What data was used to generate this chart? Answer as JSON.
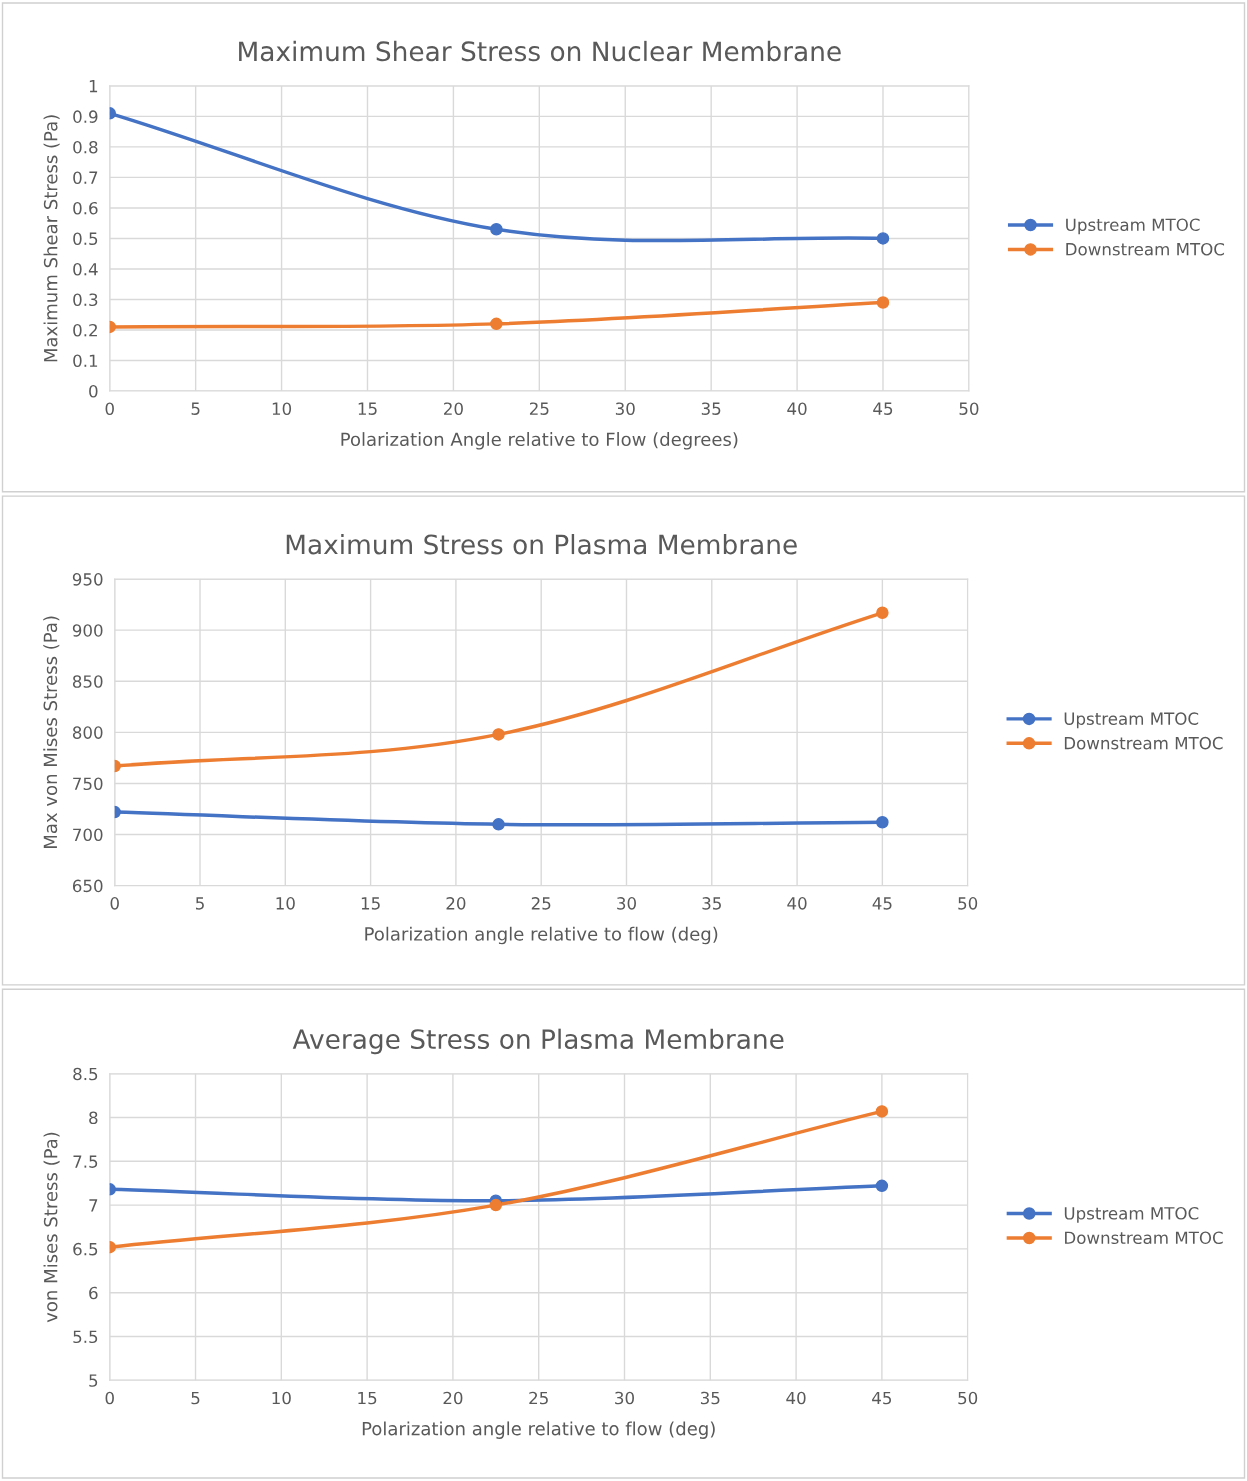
{
  "chart_data": [
    {
      "type": "line",
      "title": "Maximum Shear Stress on Nuclear Membrane",
      "xlabel": "Polarization Angle relative to Flow (degrees)",
      "ylabel": "Maximum Shear Stress (Pa)",
      "x": [
        0,
        22.5,
        45
      ],
      "series": [
        {
          "name": "Upstream MTOC",
          "color": "#4472c4",
          "values": [
            0.91,
            0.53,
            0.5
          ]
        },
        {
          "name": "Downstream MTOC",
          "color": "#ed7d31",
          "values": [
            0.21,
            0.22,
            0.29
          ]
        }
      ],
      "xlim": [
        0,
        50
      ],
      "xticks": [
        0,
        5,
        10,
        15,
        20,
        25,
        30,
        35,
        40,
        45,
        50
      ],
      "ylim": [
        0,
        1
      ],
      "yticks": [
        0,
        0.1,
        0.2,
        0.3,
        0.4,
        0.5,
        0.6,
        0.7,
        0.8,
        0.9,
        1
      ],
      "grid": true,
      "legend": "right",
      "marker": "circle",
      "line_style": "solid"
    },
    {
      "type": "line",
      "title": "Maximum Stress on Plasma Membrane",
      "xlabel": "Polarization angle relative to flow (deg)",
      "ylabel": "Max von Mises Stress (Pa)",
      "x": [
        0,
        22.5,
        45
      ],
      "series": [
        {
          "name": "Upstream MTOC",
          "color": "#4472c4",
          "values": [
            722,
            710,
            712
          ]
        },
        {
          "name": "Downstream MTOC",
          "color": "#ed7d31",
          "values": [
            767,
            798,
            917
          ]
        }
      ],
      "xlim": [
        0,
        50
      ],
      "xticks": [
        0,
        5,
        10,
        15,
        20,
        25,
        30,
        35,
        40,
        45,
        50
      ],
      "ylim": [
        650,
        950
      ],
      "yticks": [
        650,
        700,
        750,
        800,
        850,
        900,
        950
      ],
      "grid": true,
      "legend": "right",
      "marker": "circle",
      "line_style": "solid"
    },
    {
      "type": "line",
      "title": "Average Stress on Plasma Membrane",
      "xlabel": "Polarization angle relative to flow (deg)",
      "ylabel": "von Mises Stress (Pa)",
      "x": [
        0,
        22.5,
        45
      ],
      "series": [
        {
          "name": "Upstream MTOC",
          "color": "#4472c4",
          "values": [
            7.18,
            7.05,
            7.22
          ]
        },
        {
          "name": "Downstream MTOC",
          "color": "#ed7d31",
          "values": [
            6.52,
            7.0,
            8.07
          ]
        }
      ],
      "xlim": [
        0,
        50
      ],
      "xticks": [
        0,
        5,
        10,
        15,
        20,
        25,
        30,
        35,
        40,
        45,
        50
      ],
      "ylim": [
        5,
        8.5
      ],
      "yticks": [
        5,
        5.5,
        6,
        6.5,
        7,
        7.5,
        8,
        8.5
      ],
      "grid": true,
      "legend": "right",
      "marker": "circle",
      "line_style": "solid"
    }
  ]
}
